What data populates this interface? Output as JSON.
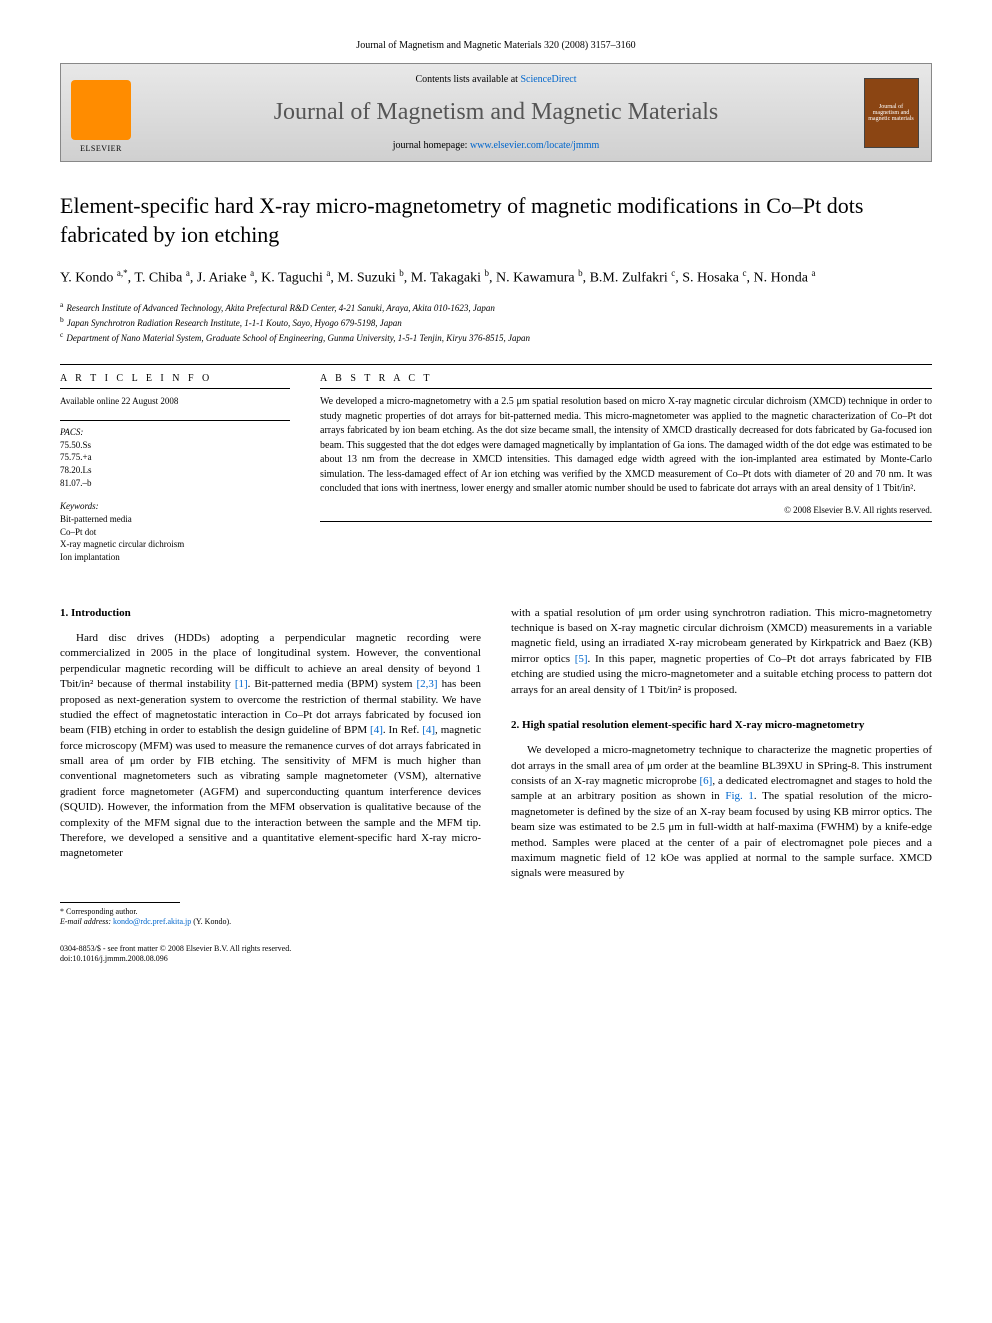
{
  "header": {
    "journal_ref": "Journal of Magnetism and Magnetic Materials 320 (2008) 3157–3160",
    "contents_text": "Contents lists available at ",
    "contents_link": "ScienceDirect",
    "journal_name": "Journal of Magnetism and Magnetic Materials",
    "homepage_label": "journal homepage: ",
    "homepage_url": "www.elsevier.com/locate/jmmm",
    "publisher": "ELSEVIER",
    "cover_text": "Journal of magnetism and magnetic materials"
  },
  "article": {
    "title": "Element-specific hard X-ray micro-magnetometry of magnetic modifications in Co–Pt dots fabricated by ion etching",
    "authors_html": "Y. Kondo <sup>a,*</sup>, T. Chiba <sup>a</sup>, J. Ariake <sup>a</sup>, K. Taguchi <sup>a</sup>, M. Suzuki <sup>b</sup>, M. Takagaki <sup>b</sup>, N. Kawamura <sup>b</sup>, B.M. Zulfakri <sup>c</sup>, S. Hosaka <sup>c</sup>, N. Honda <sup>a</sup>",
    "affiliations": [
      {
        "sup": "a",
        "text": "Research Institute of Advanced Technology, Akita Prefectural R&D Center, 4-21 Sanuki, Araya, Akita 010-1623, Japan"
      },
      {
        "sup": "b",
        "text": "Japan Synchrotron Radiation Research Institute, 1-1-1 Kouto, Sayo, Hyogo 679-5198, Japan"
      },
      {
        "sup": "c",
        "text": "Department of Nano Material System, Graduate School of Engineering, Gunma University, 1-5-1 Tenjin, Kiryu 376-8515, Japan"
      }
    ]
  },
  "info": {
    "heading": "A R T I C L E   I N F O",
    "available": "Available online 22 August 2008",
    "pacs_label": "PACS:",
    "pacs": [
      "75.50.Ss",
      "75.75.+a",
      "78.20.Ls",
      "81.07.–b"
    ],
    "keywords_label": "Keywords:",
    "keywords": [
      "Bit-patterned media",
      "Co–Pt dot",
      "X-ray magnetic circular dichroism",
      "Ion implantation"
    ]
  },
  "abstract": {
    "heading": "A B S T R A C T",
    "text": "We developed a micro-magnetometry with a 2.5 μm spatial resolution based on micro X-ray magnetic circular dichroism (XMCD) technique in order to study magnetic properties of dot arrays for bit-patterned media. This micro-magnetometer was applied to the magnetic characterization of Co–Pt dot arrays fabricated by ion beam etching. As the dot size became small, the intensity of XMCD drastically decreased for dots fabricated by Ga-focused ion beam. This suggested that the dot edges were damaged magnetically by implantation of Ga ions. The damaged width of the dot edge was estimated to be about 13 nm from the decrease in XMCD intensities. This damaged edge width agreed with the ion-implanted area estimated by Monte-Carlo simulation. The less-damaged effect of Ar ion etching was verified by the XMCD measurement of Co–Pt dots with diameter of 20 and 70 nm. It was concluded that ions with inertness, lower energy and smaller atomic number should be used to fabricate dot arrays with an areal density of 1 Tbit/in².",
    "copyright": "© 2008 Elsevier B.V. All rights reserved."
  },
  "body": {
    "section1_heading": "1.  Introduction",
    "section1_p1_a": "Hard disc drives (HDDs) adopting a perpendicular magnetic recording were commercialized in 2005 in the place of longitudinal system. However, the conventional perpendicular magnetic recording will be difficult to achieve an areal density of beyond 1 Tbit/in² because of thermal instability ",
    "ref1": "[1]",
    "section1_p1_b": ". Bit-patterned media (BPM) system ",
    "ref23": "[2,3]",
    "section1_p1_c": " has been proposed as next-generation system to overcome the restriction of thermal stability. We have studied the effect of magnetostatic interaction in Co–Pt dot arrays fabricated by focused ion beam (FIB) etching in order to establish the design guideline of BPM ",
    "ref4a": "[4]",
    "section1_p1_d": ". In Ref. ",
    "ref4b": "[4]",
    "section1_p1_e": ", magnetic force microscopy (MFM) was used to measure the remanence curves of dot arrays fabricated in small area of μm order by FIB etching. The sensitivity of MFM is much higher than conventional magnetometers such as vibrating sample magnetometer (VSM), alternative gradient force magnetometer (AGFM) and superconducting quantum interference devices (SQUID). However, the information from the MFM observation is qualitative because of the complexity of the MFM signal due to the interaction between the sample and the MFM tip. Therefore, we developed a sensitive and a quantitative element-specific hard X-ray micro-magnetometer",
    "col2_p1_a": "with a spatial resolution of μm order using synchrotron radiation. This micro-magnetometry technique is based on X-ray magnetic circular dichroism (XMCD) measurements in a variable magnetic field, using an irradiated X-ray microbeam generated by Kirkpatrick and Baez (KB) mirror optics ",
    "ref5": "[5]",
    "col2_p1_b": ". In this paper, magnetic properties of Co–Pt dot arrays fabricated by FIB etching are studied using the micro-magnetometer and a suitable etching process to pattern dot arrays for an areal density of 1 Tbit/in² is proposed.",
    "section2_heading": "2.  High spatial resolution element-specific hard X-ray micro-magnetometry",
    "section2_p1_a": "We developed a micro-magnetometry technique to characterize the magnetic properties of dot arrays in the small area of μm order at the beamline BL39XU in SPring-8. This instrument consists of an X-ray magnetic microprobe ",
    "ref6": "[6]",
    "section2_p1_b": ", a dedicated electromagnet and stages to hold the sample at an arbitrary position as shown in ",
    "fig1": "Fig. 1",
    "section2_p1_c": ". The spatial resolution of the micro-magnetometer is defined by the size of an X-ray beam focused by using KB mirror optics. The beam size was estimated to be 2.5 μm in full-width at half-maxima (FWHM) by a knife-edge method. Samples were placed at the center of a pair of electromagnet pole pieces and a maximum magnetic field of 12 kOe was applied at normal to the sample surface. XMCD signals were measured by"
  },
  "footnote": {
    "corr": "* Corresponding author.",
    "email_label": "E-mail address: ",
    "email": "kondo@rdc.pref.akita.jp",
    "email_name": " (Y. Kondo)."
  },
  "bottom": {
    "line1": "0304-8853/$ - see front matter © 2008 Elsevier B.V. All rights reserved.",
    "line2": "doi:10.1016/j.jmmm.2008.08.096"
  }
}
